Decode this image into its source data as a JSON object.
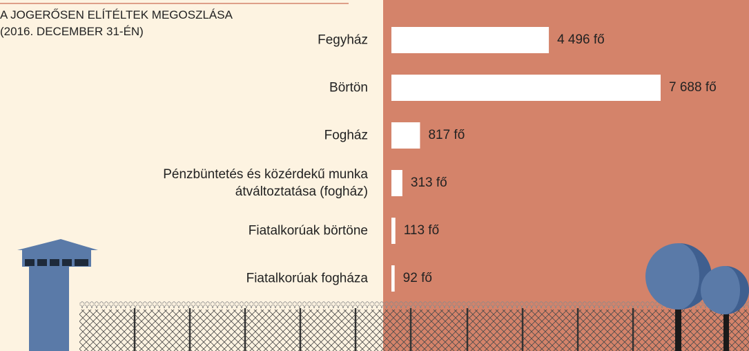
{
  "chart_data": {
    "type": "bar",
    "orientation": "horizontal",
    "title": "A JOGERŐSEN ELÍTÉLTEK MEGOSZLÁSA",
    "subtitle": "(2016. DECEMBER 31-ÉN)",
    "categories": [
      "Fegyház",
      "Börtön",
      "Fogház",
      "Pénzbüntetés és közérdekű munka átváltoztatása (fogház)",
      "Fiatalkorúak börtöne",
      "Fiatalkorúak fogháza"
    ],
    "values": [
      4496,
      7688,
      817,
      313,
      113,
      92
    ],
    "value_labels": [
      "4 496 fő",
      "7 688 fő",
      "817 fő",
      "313 fő",
      "113 fő",
      "92 fő"
    ],
    "color": "#ffffff"
  }
}
